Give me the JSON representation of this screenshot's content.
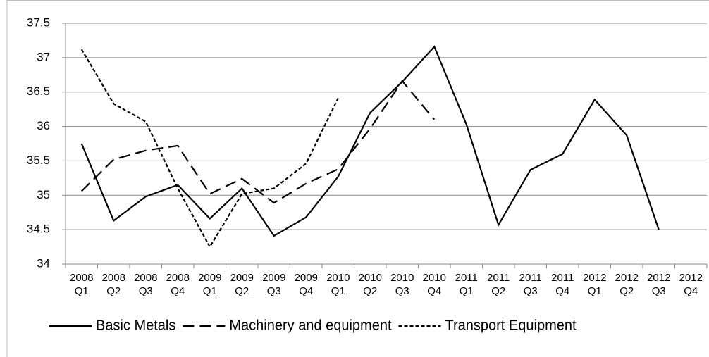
{
  "chart_data": {
    "type": "line",
    "categories": [
      [
        "2008",
        "Q1"
      ],
      [
        "2008",
        "Q2"
      ],
      [
        "2008",
        "Q3"
      ],
      [
        "2008",
        "Q4"
      ],
      [
        "2009",
        "Q1"
      ],
      [
        "2009",
        "Q2"
      ],
      [
        "2009",
        "Q3"
      ],
      [
        "2009",
        "Q4"
      ],
      [
        "2010",
        "Q1"
      ],
      [
        "2010",
        "Q2"
      ],
      [
        "2010",
        "Q3"
      ],
      [
        "2010",
        "Q4"
      ],
      [
        "2011",
        "Q1"
      ],
      [
        "2011",
        "Q2"
      ],
      [
        "2011",
        "Q3"
      ],
      [
        "2011",
        "Q4"
      ],
      [
        "2012",
        "Q1"
      ],
      [
        "2012",
        "Q2"
      ],
      [
        "2012",
        "Q3"
      ],
      [
        "2012",
        "Q4"
      ]
    ],
    "series": [
      {
        "name": "Basic Metals",
        "color": "#000000",
        "dash": "solid",
        "values": [
          35.75,
          34.63,
          34.98,
          35.15,
          34.66,
          35.1,
          34.41,
          34.68,
          35.27,
          36.2,
          36.65,
          37.16,
          36.03,
          34.57,
          35.37,
          35.6,
          36.39,
          35.87,
          34.5,
          null
        ]
      },
      {
        "name": "Machinery and equipment",
        "color": "#000000",
        "dash": "long",
        "values": [
          35.06,
          35.52,
          35.65,
          35.72,
          35.02,
          35.24,
          34.89,
          35.17,
          35.38,
          35.97,
          36.66,
          36.1,
          null,
          null,
          null,
          null,
          null,
          null,
          null,
          null
        ]
      },
      {
        "name": "Transport Equipment",
        "color": "#000000",
        "dash": "short",
        "values": [
          37.12,
          36.33,
          36.07,
          35.1,
          34.25,
          35.02,
          35.1,
          35.46,
          36.41,
          null,
          null,
          null,
          null,
          null,
          null,
          null,
          null,
          null,
          null,
          null
        ]
      }
    ],
    "ylim": [
      34,
      37.5
    ],
    "yticks": [
      34,
      34.5,
      35,
      35.5,
      36,
      36.5,
      37,
      37.5
    ],
    "grid": true,
    "legend": "bottom"
  }
}
